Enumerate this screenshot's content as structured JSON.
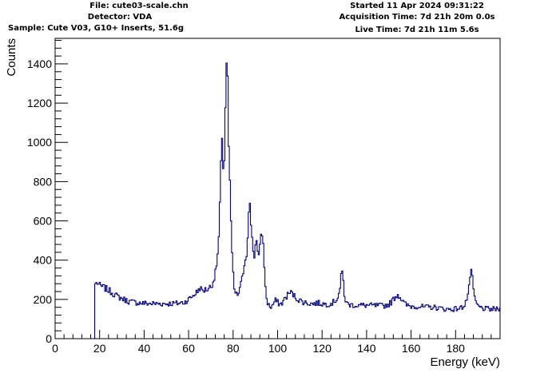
{
  "header": {
    "file": "File: cute03-scale.chn",
    "detector": "Detector: VDA",
    "sample": "Sample: Cute V03, G10+ Inserts, 51.6g",
    "started": "Started 11 Apr 2024 09:31:22",
    "acquisition": "Acquisition Time: 7d 21h 20m 0.0s",
    "live": "Live Time: 7d 21h 11m 5.6s"
  },
  "chart_data": {
    "type": "line",
    "title": "",
    "xlabel": "Energy (keV)",
    "ylabel": "Counts",
    "xlim": [
      0,
      200
    ],
    "ylim": [
      0,
      1530
    ],
    "x_ticks": [
      0,
      20,
      40,
      60,
      80,
      100,
      120,
      140,
      160,
      180
    ],
    "y_ticks": [
      0,
      200,
      400,
      600,
      800,
      1000,
      1200,
      1400
    ],
    "grid": false,
    "line_color": "#000080",
    "series": [
      {
        "style": "step",
        "x": [
          17.8,
          18,
          19,
          20,
          22,
          25,
          28,
          30,
          33,
          36,
          40,
          45,
          50,
          55,
          58,
          60,
          62,
          64,
          65,
          66,
          68,
          70,
          71,
          72,
          73,
          73.5,
          74,
          74.5,
          75,
          75.5,
          76,
          76.5,
          77,
          77.5,
          78,
          78.5,
          79,
          79.5,
          80,
          80.5,
          81,
          82,
          83,
          84,
          85,
          86,
          86.5,
          87,
          87.5,
          88,
          88.5,
          89,
          89.5,
          90,
          90.5,
          91,
          91.5,
          92,
          92.5,
          93,
          93.5,
          94,
          94.5,
          95,
          96,
          97,
          98,
          99,
          100,
          101,
          102,
          103,
          104,
          105,
          106,
          107,
          108,
          110,
          112,
          114,
          116,
          118,
          120,
          122,
          124,
          125,
          126,
          127,
          128,
          128.5,
          129,
          129.5,
          130,
          130.5,
          131,
          132,
          133,
          135,
          138,
          140,
          143,
          146,
          148,
          150,
          151,
          152,
          153,
          154,
          155,
          156,
          157,
          158,
          160,
          163,
          166,
          170,
          173,
          176,
          178,
          180,
          182,
          183,
          184,
          185,
          186,
          186.5,
          187,
          187.5,
          188,
          189,
          190,
          192,
          194,
          196,
          198,
          200
        ],
        "y": [
          0,
          280,
          285,
          270,
          260,
          240,
          215,
          205,
          190,
          185,
          180,
          178,
          178,
          180,
          185,
          200,
          220,
          240,
          260,
          245,
          250,
          265,
          290,
          330,
          420,
          500,
          650,
          880,
          1000,
          880,
          900,
          1150,
          1420,
          1350,
          1000,
          800,
          600,
          450,
          330,
          260,
          230,
          220,
          250,
          300,
          380,
          430,
          520,
          630,
          680,
          600,
          520,
          460,
          420,
          470,
          500,
          430,
          400,
          490,
          520,
          550,
          480,
          380,
          280,
          200,
          170,
          160,
          175,
          195,
          185,
          175,
          180,
          200,
          215,
          230,
          235,
          225,
          210,
          195,
          185,
          180,
          178,
          182,
          178,
          175,
          180,
          185,
          195,
          210,
          250,
          310,
          340,
          300,
          230,
          195,
          180,
          175,
          172,
          170,
          170,
          170,
          168,
          168,
          168,
          175,
          185,
          200,
          215,
          225,
          215,
          195,
          180,
          170,
          165,
          165,
          160,
          160,
          155,
          150,
          150,
          152,
          155,
          160,
          175,
          200,
          250,
          320,
          350,
          310,
          240,
          190,
          165,
          155,
          150,
          150,
          150,
          150
        ]
      }
    ]
  }
}
